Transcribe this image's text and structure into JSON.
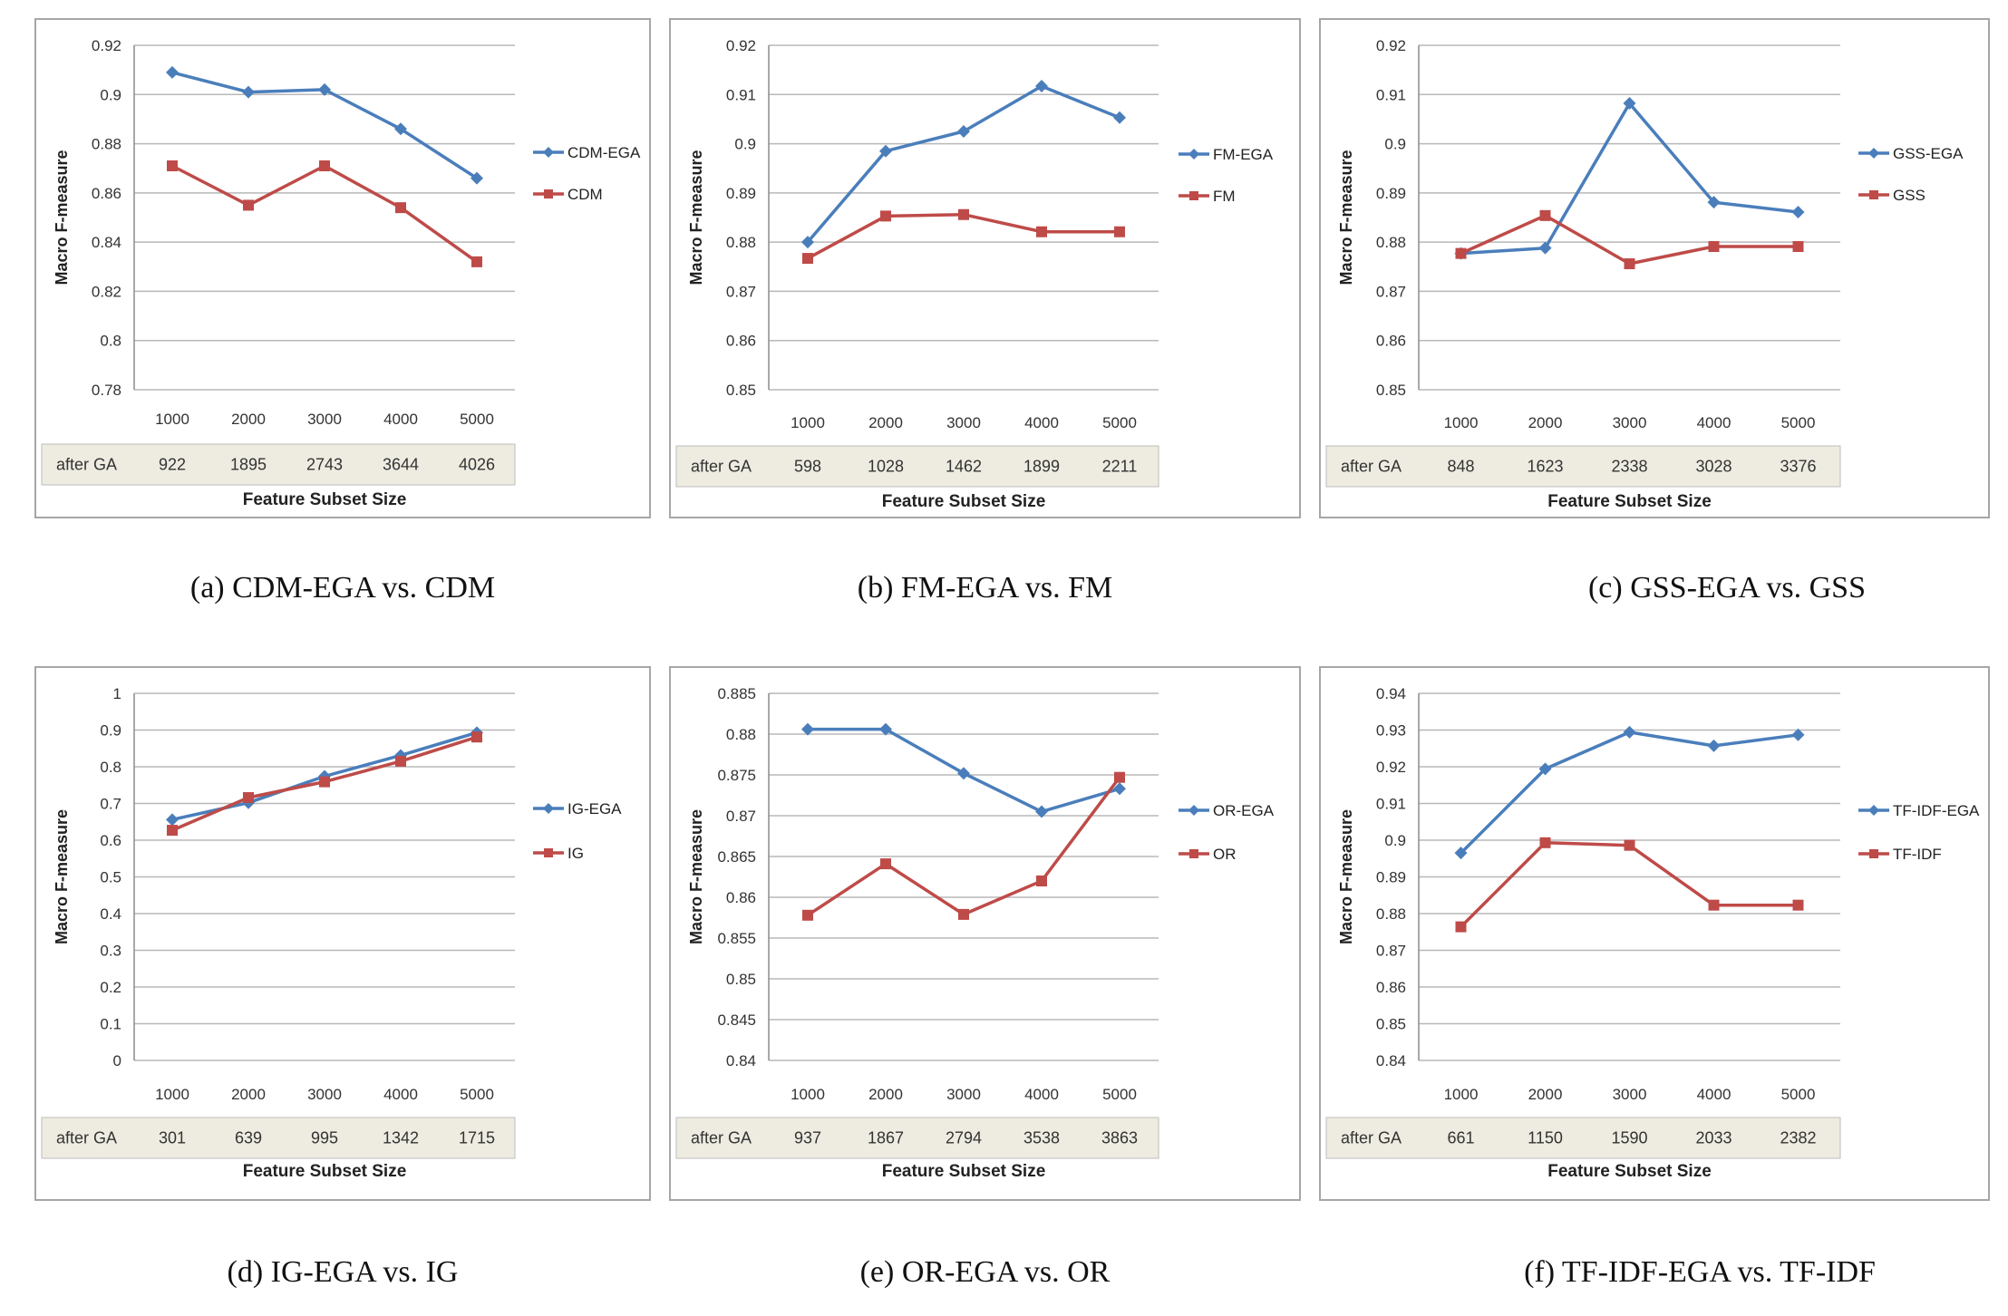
{
  "chart_data": [
    {
      "type": "line",
      "caption": "(a)   CDM-EGA vs. CDM",
      "ylabel": "Macro F-measure",
      "xlabel": "Feature Subset Size",
      "categories": [
        "1000",
        "2000",
        "3000",
        "4000",
        "5000"
      ],
      "table_label": "after GA",
      "table_values": [
        "922",
        "1895",
        "2743",
        "3644",
        "4026"
      ],
      "yticks": [
        "0.78",
        "0.8",
        "0.82",
        "0.84",
        "0.86",
        "0.88",
        "0.9",
        "0.92"
      ],
      "ylim": [
        0.78,
        0.92
      ],
      "grid": true,
      "legend_position": "right",
      "series": [
        {
          "name": "CDM-EGA",
          "color": "#4a7ebb",
          "marker": "diamond",
          "values": [
            0.909,
            0.901,
            0.902,
            0.886,
            0.866
          ]
        },
        {
          "name": "CDM",
          "color": "#be4b48",
          "marker": "square",
          "values": [
            0.871,
            0.855,
            0.871,
            0.854,
            0.832
          ]
        }
      ]
    },
    {
      "type": "line",
      "caption": "(b) FM-EGA vs. FM",
      "ylabel": "Macro F-measure",
      "xlabel": "Feature Subset Size",
      "categories": [
        "1000",
        "2000",
        "3000",
        "4000",
        "5000"
      ],
      "table_label": "after GA",
      "table_values": [
        "598",
        "1028",
        "1462",
        "1899",
        "2211"
      ],
      "yticks": [
        "0.85",
        "0.86",
        "0.87",
        "0.88",
        "0.89",
        "0.9",
        "0.91",
        "0.92"
      ],
      "ylim": [
        0.85,
        0.92
      ],
      "grid": true,
      "legend_position": "right",
      "series": [
        {
          "name": "FM-EGA",
          "color": "#4a7ebb",
          "marker": "diamond",
          "values": [
            0.88,
            0.8985,
            0.9025,
            0.9117,
            0.9053
          ]
        },
        {
          "name": "FM",
          "color": "#be4b48",
          "marker": "square",
          "values": [
            0.8767,
            0.8853,
            0.8856,
            0.8821,
            0.8821
          ]
        }
      ]
    },
    {
      "type": "line",
      "caption": "(c) GSS-EGA vs. GSS",
      "ylabel": "Macro F-measure",
      "xlabel": "Feature Subset Size",
      "categories": [
        "1000",
        "2000",
        "3000",
        "4000",
        "5000"
      ],
      "table_label": "after GA",
      "table_values": [
        "848",
        "1623",
        "2338",
        "3028",
        "3376"
      ],
      "yticks": [
        "0.85",
        "0.86",
        "0.87",
        "0.88",
        "0.89",
        "0.9",
        "0.91",
        "0.92"
      ],
      "ylim": [
        0.85,
        0.92
      ],
      "grid": true,
      "legend_position": "right",
      "series": [
        {
          "name": "GSS-EGA",
          "color": "#4a7ebb",
          "marker": "diamond",
          "values": [
            0.8777,
            0.8788,
            0.9082,
            0.8881,
            0.8861
          ]
        },
        {
          "name": "GSS",
          "color": "#be4b48",
          "marker": "square",
          "values": [
            0.8777,
            0.8854,
            0.8756,
            0.8791,
            0.8791
          ]
        }
      ]
    },
    {
      "type": "line",
      "caption": "(d) IG-EGA vs. IG",
      "ylabel": "Macro F-measure",
      "xlabel": "Feature Subset Size",
      "categories": [
        "1000",
        "2000",
        "3000",
        "4000",
        "5000"
      ],
      "table_label": "after GA",
      "table_values": [
        "301",
        "639",
        "995",
        "1342",
        "1715"
      ],
      "yticks": [
        "0",
        "0.1",
        "0.2",
        "0.3",
        "0.4",
        "0.5",
        "0.6",
        "0.7",
        "0.8",
        "0.9",
        "1"
      ],
      "ylim": [
        0,
        1
      ],
      "grid": true,
      "legend_position": "right",
      "series": [
        {
          "name": "IG-EGA",
          "color": "#4a7ebb",
          "marker": "diamond",
          "values": [
            0.656,
            0.702,
            0.774,
            0.831,
            0.893
          ]
        },
        {
          "name": "IG",
          "color": "#be4b48",
          "marker": "square",
          "values": [
            0.627,
            0.716,
            0.759,
            0.815,
            0.881
          ]
        }
      ]
    },
    {
      "type": "line",
      "caption": "(e) OR-EGA vs. OR",
      "ylabel": "Macro F-measure",
      "xlabel": "Feature Subset Size",
      "categories": [
        "1000",
        "2000",
        "3000",
        "4000",
        "5000"
      ],
      "table_label": "after GA",
      "table_values": [
        "937",
        "1867",
        "2794",
        "3538",
        "3863"
      ],
      "yticks": [
        "0.84",
        "0.845",
        "0.85",
        "0.855",
        "0.86",
        "0.865",
        "0.87",
        "0.875",
        "0.88",
        "0.885"
      ],
      "ylim": [
        0.84,
        0.885
      ],
      "grid": true,
      "legend_position": "right",
      "series": [
        {
          "name": "OR-EGA",
          "color": "#4a7ebb",
          "marker": "diamond",
          "values": [
            0.8806,
            0.8806,
            0.8752,
            0.8705,
            0.8733
          ]
        },
        {
          "name": "OR",
          "color": "#be4b48",
          "marker": "square",
          "values": [
            0.8578,
            0.8641,
            0.8579,
            0.862,
            0.8747
          ]
        }
      ]
    },
    {
      "type": "line",
      "caption": "(f) TF-IDF-EGA vs. TF-IDF",
      "ylabel": "Macro F-measure",
      "xlabel": "Feature Subset Size",
      "categories": [
        "1000",
        "2000",
        "3000",
        "4000",
        "5000"
      ],
      "table_label": "after GA",
      "table_values": [
        "661",
        "1150",
        "1590",
        "2033",
        "2382"
      ],
      "yticks": [
        "0.84",
        "0.85",
        "0.86",
        "0.87",
        "0.88",
        "0.89",
        "0.9",
        "0.91",
        "0.92",
        "0.93",
        "0.94"
      ],
      "ylim": [
        0.84,
        0.94
      ],
      "grid": true,
      "legend_position": "right",
      "series": [
        {
          "name": "TF-IDF-EGA",
          "color": "#4a7ebb",
          "marker": "diamond",
          "values": [
            0.8965,
            0.9194,
            0.9294,
            0.9257,
            0.9287
          ]
        },
        {
          "name": "TF-IDF",
          "color": "#be4b48",
          "marker": "square",
          "values": [
            0.8764,
            0.8993,
            0.8986,
            0.8823,
            0.8823
          ]
        }
      ]
    }
  ]
}
